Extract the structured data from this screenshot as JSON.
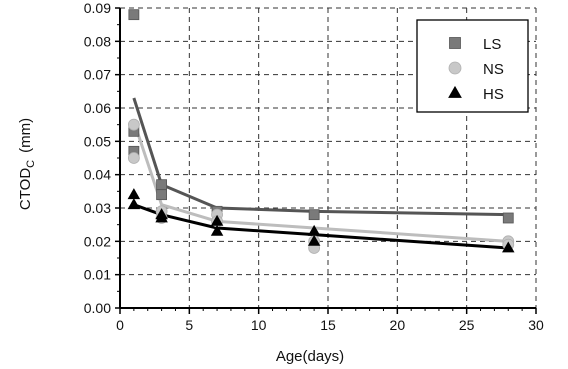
{
  "chart_data": {
    "type": "scatter",
    "xlabel": "Age(days)",
    "ylabel": "CTOD",
    "ylabel_subscript": "C",
    "ylabel_unit": "(mm)",
    "xlim": [
      0,
      30
    ],
    "ylim": [
      0,
      0.09
    ],
    "x_ticks": [
      "0",
      "5",
      "10",
      "15",
      "20",
      "25",
      "30"
    ],
    "y_ticks": [
      "0.00",
      "0.01",
      "0.02",
      "0.03",
      "0.04",
      "0.05",
      "0.06",
      "0.07",
      "0.08",
      "0.09"
    ],
    "grid": true,
    "legend_position": "top-right",
    "series": [
      {
        "name": "LS",
        "color": "#7a7a7a",
        "marker": "square",
        "points": [
          [
            1,
            0.088
          ],
          [
            1,
            0.053
          ],
          [
            1,
            0.047
          ],
          [
            3,
            0.037
          ],
          [
            3,
            0.034
          ],
          [
            7,
            0.029
          ],
          [
            14,
            0.028
          ],
          [
            28,
            0.027
          ]
        ],
        "trend": [
          [
            1,
            0.063
          ],
          [
            3,
            0.037
          ],
          [
            7,
            0.03
          ],
          [
            14,
            0.029
          ],
          [
            28,
            0.028
          ]
        ]
      },
      {
        "name": "NS",
        "color": "#c8c8c8",
        "marker": "circle",
        "points": [
          [
            1,
            0.055
          ],
          [
            1,
            0.045
          ],
          [
            3,
            0.029
          ],
          [
            3,
            0.027
          ],
          [
            7,
            0.028
          ],
          [
            7,
            0.026
          ],
          [
            14,
            0.02
          ],
          [
            14,
            0.018
          ],
          [
            28,
            0.02
          ],
          [
            28,
            0.019
          ]
        ],
        "trend": [
          [
            1,
            0.056
          ],
          [
            3,
            0.031
          ],
          [
            7,
            0.026
          ],
          [
            14,
            0.024
          ],
          [
            28,
            0.02
          ]
        ]
      },
      {
        "name": "HS",
        "color": "#000000",
        "marker": "triangle",
        "points": [
          [
            1,
            0.034
          ],
          [
            1,
            0.031
          ],
          [
            3,
            0.028
          ],
          [
            3,
            0.027
          ],
          [
            7,
            0.026
          ],
          [
            7,
            0.023
          ],
          [
            14,
            0.023
          ],
          [
            14,
            0.02
          ],
          [
            28,
            0.018
          ]
        ],
        "trend": [
          [
            1,
            0.031
          ],
          [
            3,
            0.028
          ],
          [
            7,
            0.024
          ],
          [
            14,
            0.022
          ],
          [
            28,
            0.018
          ]
        ]
      }
    ]
  }
}
